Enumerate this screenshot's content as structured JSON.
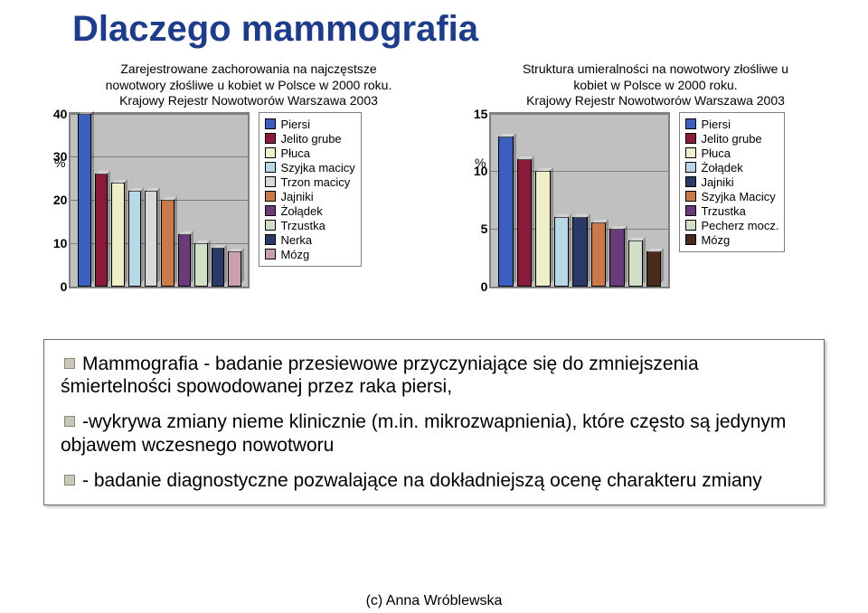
{
  "title": "Dlaczego mammografia",
  "pct_label": "%",
  "chart1": {
    "title_l1": "Zarejestrowane zachorowania na najczęstsze",
    "title_l2": "nowotwory złośliwe u kobiet w Polsce w 2000 roku.",
    "title_l3": "Krajowy Rejestr Nowotworów Warszawa 2003",
    "ymax": 40,
    "ytick_step": 10,
    "series": [
      {
        "label": "Piersi",
        "value": 40,
        "color": "#3b5fbf"
      },
      {
        "label": "Jelito grube",
        "value": 26,
        "color": "#8b1a3a"
      },
      {
        "label": "Płuca",
        "value": 24,
        "color": "#f0eec6"
      },
      {
        "label": "Szyjka macicy",
        "value": 22,
        "color": "#b8d8e8"
      },
      {
        "label": "Trzon macicy",
        "value": 22,
        "color": "#d8d8d8"
      },
      {
        "label": "Jajniki",
        "value": 20,
        "color": "#c97a4a"
      },
      {
        "label": "Żołądek",
        "value": 12,
        "color": "#6a3a7a"
      },
      {
        "label": "Trzustka",
        "value": 10,
        "color": "#d0dfc6"
      },
      {
        "label": "Nerka",
        "value": 9,
        "color": "#2a3a66"
      },
      {
        "label": "Mózg",
        "value": 8,
        "color": "#ca9fb0"
      }
    ]
  },
  "chart2": {
    "title_l1": "Struktura umieralności na nowotwory złośliwe u",
    "title_l2": "kobiet w Polsce w 2000 roku.",
    "title_l3": "Krajowy Rejestr Nowotworów Warszawa 2003",
    "ymax": 15,
    "ytick_step": 5,
    "series": [
      {
        "label": "Piersi",
        "value": 13,
        "color": "#3b5fbf"
      },
      {
        "label": "Jelito grube",
        "value": 11,
        "color": "#8b1a3a"
      },
      {
        "label": "Płuca",
        "value": 10,
        "color": "#f0eec6"
      },
      {
        "label": "Żołądek",
        "value": 6,
        "color": "#b8d8e8"
      },
      {
        "label": "Jajniki",
        "value": 6,
        "color": "#2a3a66"
      },
      {
        "label": "Szyjka Macicy",
        "value": 5.5,
        "color": "#c97a4a"
      },
      {
        "label": "Trzustka",
        "value": 5,
        "color": "#6a3a7a"
      },
      {
        "label": "Pecherz mocz.",
        "value": 4,
        "color": "#d0dfc6"
      },
      {
        "label": "Mózg",
        "value": 3,
        "color": "#4a2a1a"
      }
    ]
  },
  "para1": "Mammografia  - badanie przesiewowe przyczyniające się do zmniejszenia śmiertelności spowodowanej przez raka piersi,",
  "para2": "-wykrywa zmiany nieme klinicznie (m.in. mikrozwapnienia), które często są jedynym objawem wczesnego nowotworu",
  "para3": "- badanie diagnostyczne pozwalające na dokładniejszą ocenę charakteru zmiany",
  "footer": "(c) Anna Wróblewska"
}
